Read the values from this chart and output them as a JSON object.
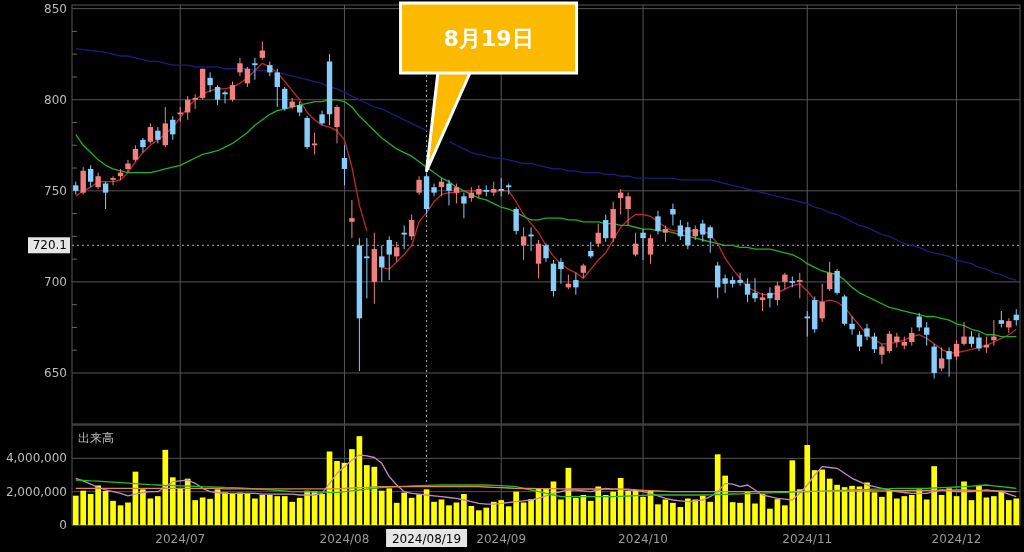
{
  "chart_data": [
    {
      "type": "candlestick",
      "categories": [
        null,
        null,
        null,
        null,
        null,
        null,
        null,
        null,
        null,
        null,
        null,
        null,
        null,
        null,
        "2024/07",
        null,
        null,
        null,
        null,
        null,
        null,
        null,
        null,
        null,
        null,
        null,
        null,
        null,
        null,
        null,
        null,
        null,
        null,
        null,
        null,
        null,
        "2024/08",
        null,
        null,
        null,
        null,
        null,
        null,
        null,
        null,
        null,
        null,
        "2024/08/19",
        null,
        null,
        null,
        null,
        null,
        null,
        null,
        null,
        null,
        "2024/09",
        null,
        null,
        null,
        null,
        null,
        null,
        null,
        null,
        null,
        null,
        null,
        null,
        null,
        null,
        null,
        null,
        null,
        null,
        "2024/10",
        null,
        null,
        null,
        null,
        null,
        null,
        null,
        null,
        null,
        null,
        null,
        null,
        null,
        null,
        null,
        null,
        null,
        null,
        null,
        null,
        null,
        "2024/11",
        null,
        null,
        null,
        null,
        null,
        null,
        null,
        null,
        null,
        null,
        null,
        null,
        null,
        null,
        null,
        null,
        null,
        null,
        null,
        "2024/12",
        null,
        null,
        null,
        null,
        null,
        null,
        null,
        null
      ],
      "ohlc": [
        [
          753,
          755,
          748,
          750
        ],
        [
          749,
          763,
          748,
          761
        ],
        [
          762,
          764,
          752,
          755
        ],
        [
          752,
          760,
          751,
          758
        ],
        [
          754,
          755,
          740,
          749
        ],
        [
          756,
          758,
          753,
          757
        ],
        [
          758,
          762,
          756,
          760
        ],
        [
          762,
          767,
          760,
          765
        ],
        [
          767,
          775,
          766,
          773
        ],
        [
          778,
          779,
          771,
          774
        ],
        [
          777,
          787,
          776,
          785
        ],
        [
          783,
          785,
          776,
          778
        ],
        [
          775,
          796,
          774,
          787
        ],
        [
          789,
          791,
          778,
          781
        ],
        [
          792,
          796,
          788,
          793
        ],
        [
          793,
          802,
          789,
          800
        ],
        [
          800,
          803,
          795,
          801
        ],
        [
          801,
          817,
          800,
          817
        ],
        [
          812,
          815,
          804,
          808
        ],
        [
          807,
          808,
          797,
          800
        ],
        [
          804,
          805,
          798,
          803
        ],
        [
          800,
          810,
          799,
          808
        ],
        [
          815,
          823,
          813,
          820
        ],
        [
          809,
          818,
          807,
          817
        ],
        [
          820,
          823,
          811,
          819
        ],
        [
          823,
          832,
          822,
          827
        ],
        [
          819,
          821,
          813,
          815
        ],
        [
          815,
          817,
          796,
          807
        ],
        [
          806,
          807,
          794,
          795
        ],
        [
          796,
          801,
          795,
          799
        ],
        [
          797,
          799,
          791,
          793
        ],
        [
          790,
          791,
          773,
          774
        ],
        [
          775,
          782,
          770,
          776
        ],
        [
          792,
          794,
          786,
          787
        ],
        [
          821,
          825,
          786,
          792
        ],
        [
          785,
          797,
          776,
          796
        ],
        [
          768,
          775,
          753,
          762
        ],
        [
          733,
          745,
          724,
          735
        ],
        [
          720,
          724,
          651,
          680
        ],
        [
          714,
          724,
          691,
          713
        ],
        [
          700,
          727,
          688,
          718
        ],
        [
          714,
          720,
          700,
          708
        ],
        [
          723,
          725,
          701,
          715
        ],
        [
          714,
          722,
          711,
          719
        ],
        [
          727,
          731,
          718,
          726
        ],
        [
          725,
          737,
          723,
          734
        ],
        [
          749,
          758,
          748,
          756
        ],
        [
          758,
          760,
          737,
          740
        ],
        [
          752,
          754,
          747,
          749
        ],
        [
          752,
          757,
          747,
          755
        ],
        [
          754,
          756,
          742,
          750
        ],
        [
          749,
          754,
          743,
          752
        ],
        [
          747,
          749,
          735,
          743
        ],
        [
          746,
          752,
          744,
          749
        ],
        [
          748,
          753,
          746,
          751
        ],
        [
          750.5,
          753,
          747,
          749.5
        ],
        [
          749,
          755,
          747,
          751
        ],
        [
          751,
          757,
          747,
          750
        ],
        [
          753,
          754,
          748,
          752
        ],
        [
          740,
          741,
          726,
          728
        ],
        [
          720,
          730,
          712,
          725
        ],
        [
          726,
          730,
          717,
          725
        ],
        [
          710,
          723,
          702,
          721
        ],
        [
          720,
          721,
          711,
          713
        ],
        [
          710,
          712,
          692,
          695
        ],
        [
          711,
          713,
          699,
          707
        ],
        [
          697,
          704,
          696,
          699
        ],
        [
          701,
          705,
          693,
          697
        ],
        [
          705,
          710,
          702,
          709
        ],
        [
          717,
          722,
          713,
          714
        ],
        [
          721,
          732,
          719,
          727
        ],
        [
          734,
          737,
          722,
          724
        ],
        [
          724,
          744,
          722,
          740
        ],
        [
          746,
          751,
          737,
          749
        ],
        [
          740,
          749,
          731,
          747
        ],
        [
          715,
          727,
          714,
          721
        ],
        [
          727,
          729,
          712,
          724
        ],
        [
          715,
          726,
          710,
          724
        ],
        [
          736,
          739,
          726,
          728
        ],
        [
          727,
          731,
          722,
          729
        ],
        [
          740,
          743,
          731,
          737
        ],
        [
          731,
          734,
          723,
          725
        ],
        [
          730,
          733,
          718,
          720
        ],
        [
          725,
          731,
          723,
          729
        ],
        [
          732,
          734,
          722,
          726
        ],
        [
          730,
          731,
          716,
          724
        ],
        [
          709,
          711,
          691,
          697
        ],
        [
          702,
          704,
          694,
          699
        ],
        [
          701,
          703,
          697,
          699
        ],
        [
          701,
          705,
          698,
          699.5
        ],
        [
          699,
          702,
          689,
          693
        ],
        [
          694,
          702,
          689,
          691
        ],
        [
          690,
          694,
          684,
          691.5
        ],
        [
          694,
          697,
          686,
          691
        ],
        [
          690,
          700,
          687,
          698
        ],
        [
          700,
          705,
          696,
          704
        ],
        [
          700.5,
          703,
          697,
          699.5
        ],
        [
          700,
          705,
          691,
          701
        ],
        [
          681,
          684,
          670,
          680
        ],
        [
          690,
          692,
          672,
          674
        ],
        [
          680,
          699,
          678,
          689
        ],
        [
          696,
          711,
          695,
          705
        ],
        [
          706,
          707,
          693,
          694
        ],
        [
          692,
          693,
          676,
          677
        ],
        [
          677,
          681,
          671,
          674
        ],
        [
          671,
          673,
          662,
          664.5
        ],
        [
          674.5,
          677,
          668,
          670
        ],
        [
          670,
          672,
          661,
          663
        ],
        [
          660,
          666,
          655,
          664.5
        ],
        [
          662,
          673,
          661,
          671.5
        ],
        [
          667,
          672,
          664,
          670
        ],
        [
          665,
          670,
          663,
          667
        ],
        [
          667,
          675,
          665,
          672
        ],
        [
          681,
          683,
          673,
          675
        ],
        [
          675,
          678,
          665,
          671
        ],
        [
          664.5,
          666,
          647,
          650
        ],
        [
          652.5,
          664,
          651,
          658
        ],
        [
          662,
          664,
          648,
          657.5
        ],
        [
          659,
          668,
          657,
          666
        ],
        [
          666,
          678,
          665,
          670
        ],
        [
          670,
          673,
          664,
          666
        ],
        [
          669.5,
          672,
          662,
          663.5
        ],
        [
          664,
          670,
          661,
          665.5
        ],
        [
          668,
          679,
          665,
          670
        ],
        [
          679,
          684,
          675,
          677
        ],
        [
          675,
          680,
          672,
          678.5
        ],
        [
          682,
          685,
          676,
          679
        ]
      ],
      "colors": [
        "#87cefa",
        "#f08080",
        "#87cefa",
        "#f08080",
        "#87cefa",
        "#f08080",
        "#f08080",
        "#f08080",
        "#f08080",
        "#87cefa",
        "#f08080",
        "#87cefa",
        "#f08080",
        "#87cefa",
        "#f08080",
        "#f08080",
        "#f08080",
        "#f08080",
        "#87cefa",
        "#87cefa",
        "#87cefa",
        "#f08080",
        "#f08080",
        "#f08080",
        "#87cefa",
        "#f08080",
        "#87cefa",
        "#87cefa",
        "#87cefa",
        "#f08080",
        "#87cefa",
        "#87cefa",
        "#f08080",
        "#87cefa",
        "#87cefa",
        "#f08080",
        "#87cefa",
        "#f08080",
        "#87cefa",
        "#87cefa",
        "#f08080",
        "#87cefa",
        "#87cefa",
        "#f08080",
        "#87cefa",
        "#f08080",
        "#f08080",
        "#87cefa",
        "#87cefa",
        "#f08080",
        "#87cefa",
        "#f08080",
        "#87cefa",
        "#f08080",
        "#f08080",
        "#87cefa",
        "#f08080",
        "#87cefa",
        "#87cefa",
        "#87cefa",
        "#f08080",
        "#87cefa",
        "#f08080",
        "#87cefa",
        "#87cefa",
        "#87cefa",
        "#f08080",
        "#87cefa",
        "#f08080",
        "#87cefa",
        "#f08080",
        "#87cefa",
        "#f08080",
        "#f08080",
        "#f08080",
        "#f08080",
        "#87cefa",
        "#f08080",
        "#87cefa",
        "#f08080",
        "#87cefa",
        "#87cefa",
        "#87cefa",
        "#f08080",
        "#87cefa",
        "#87cefa",
        "#87cefa",
        "#87cefa",
        "#87cefa",
        "#87cefa",
        "#87cefa",
        "#87cefa",
        "#f08080",
        "#87cefa",
        "#f08080",
        "#f08080",
        "#87cefa",
        "#f08080",
        "#87cefa",
        "#87cefa",
        "#f08080",
        "#f08080",
        "#87cefa",
        "#87cefa",
        "#87cefa",
        "#87cefa",
        "#87cefa",
        "#87cefa",
        "#f08080",
        "#f08080",
        "#f08080",
        "#f08080",
        "#f08080",
        "#87cefa",
        "#87cefa",
        "#87cefa",
        "#f08080",
        "#87cefa",
        "#f08080",
        "#f08080",
        "#87cefa",
        "#87cefa",
        "#f08080",
        "#f08080",
        "#87cefa",
        "#f08080",
        "#87cefa"
      ],
      "series": [
        {
          "type": "line",
          "color": "#c0282d",
          "values": [
            747,
            750,
            752,
            755,
            755,
            755,
            756,
            760,
            766,
            771,
            775,
            778,
            781,
            785,
            790,
            796,
            800,
            803,
            805,
            806,
            806,
            807,
            809,
            812,
            816,
            820,
            818,
            815,
            810,
            805,
            800,
            793,
            789,
            786,
            785,
            783,
            778,
            763,
            742,
            728,
            null,
            708,
            707,
            711,
            715,
            720,
            733,
            738,
            744,
            748,
            749,
            749,
            750,
            750,
            750,
            750,
            750,
            750,
            750,
            744,
            737,
            732,
            727,
            720,
            714,
            710,
            707,
            705,
            702,
            707,
            712,
            716,
            723,
            730,
            734,
            737,
            737,
            736,
            733,
            730,
            728,
            728,
            728,
            728,
            728,
            726,
            721,
            713,
            707,
            702,
            697,
            695,
            693,
            693,
            694,
            696,
            698,
            699,
            695,
            690,
            689,
            690,
            689,
            686,
            681,
            676,
            671,
            668,
            666,
            666,
            667,
            668,
            670,
            671,
            669,
            666,
            663,
            661,
            661,
            662,
            663,
            664,
            665,
            667,
            669,
            671,
            674
          ]
        },
        {
          "type": "line",
          "color": "#22b022",
          "values": [
            781,
            775,
            771,
            767,
            764,
            762,
            761,
            760,
            760,
            760,
            760,
            761,
            762,
            763,
            764,
            766,
            768,
            770,
            771,
            772,
            774,
            776,
            779,
            782,
            786,
            789,
            792,
            794,
            795,
            796,
            797,
            798,
            799,
            799,
            800,
            800,
            799,
            796,
            791,
            787,
            783,
            779,
            776,
            773,
            771,
            769,
            766,
            763,
            760,
            757,
            755,
            752,
            750,
            748,
            746,
            745,
            743,
            741,
            740,
            738,
            736,
            734,
            734,
            735,
            735,
            735,
            734,
            734,
            733,
            733,
            733,
            732,
            732,
            731,
            731,
            730,
            729,
            729,
            728,
            728,
            727,
            726,
            725,
            724,
            723,
            722,
            721,
            720,
            720,
            719,
            719,
            718,
            718,
            718,
            717,
            716,
            715,
            713,
            710,
            708,
            706,
            705,
            704,
            701,
            697,
            694,
            692,
            690,
            688,
            686,
            685,
            684,
            683,
            682,
            681,
            681,
            680,
            679,
            677,
            676,
            674,
            673,
            671,
            671,
            670,
            670,
            670
          ]
        },
        {
          "type": "line",
          "color": "#1c1c80",
          "values": [
            828,
            827.5,
            827,
            826.5,
            826,
            825,
            824,
            824,
            823,
            822,
            821,
            821,
            820,
            819,
            819,
            819,
            818,
            818,
            818,
            818,
            817,
            817,
            817,
            817,
            816,
            816,
            816,
            815,
            814,
            813,
            812,
            811,
            810,
            809,
            807,
            806,
            804,
            802,
            800,
            798,
            796,
            795,
            793,
            791,
            789,
            787,
            785,
            783,
            null,
            null,
            777,
            775,
            773,
            771,
            770,
            769,
            768,
            768,
            767,
            766,
            765,
            765,
            764,
            763,
            762,
            762,
            761,
            761,
            760,
            760,
            760,
            759,
            759,
            758,
            758,
            757,
            757,
            757,
            757,
            757,
            757,
            756,
            756,
            756,
            756,
            756,
            755,
            754,
            753,
            752,
            751,
            750,
            749,
            748,
            747,
            746,
            745,
            744,
            743,
            741,
            740,
            738,
            737,
            735,
            733,
            731,
            730,
            728,
            726,
            725,
            723,
            721,
            720,
            719,
            717,
            716,
            715,
            714,
            712,
            711,
            710,
            708,
            707,
            705,
            704,
            702,
            701
          ]
        }
      ],
      "ylim": [
        622,
        852
      ],
      "yticks": [
        650,
        {
          "value": 662.5,
          "label": null
        },
        {
          "value": 675,
          "label": null
        },
        {
          "value": 687.5,
          "label": null
        },
        700,
        {
          "value": 712.5,
          "label": null
        },
        {
          "value": 725,
          "label": null
        },
        {
          "value": 737.5,
          "label": null
        },
        750,
        {
          "value": 762.5,
          "label": null
        },
        {
          "value": 775,
          "label": null
        },
        {
          "value": 787.5,
          "label": null
        },
        800,
        {
          "value": 812.5,
          "label": null
        },
        {
          "value": 825,
          "label": null
        },
        {
          "value": 837.5,
          "label": null
        },
        850
      ],
      "grid": true,
      "tick_labels": "y",
      "ref_lines": [
        {
          "axis": "x",
          "value": "2024/08/19",
          "line_style": "dotted",
          "color": "#aaaaaa"
        },
        {
          "axis": "y",
          "value": 720.1,
          "label": "720.1",
          "line_style": "dotted",
          "color": "#aaaaaa"
        }
      ],
      "annotations": [
        {
          "text": "8月19日",
          "x": "2024/08/19",
          "y": 761
        }
      ]
    },
    {
      "type": "bar",
      "title": "出来高",
      "categories": [
        null,
        null,
        null,
        null,
        null,
        null,
        null,
        null,
        null,
        null,
        null,
        null,
        null,
        null,
        "2024/07",
        null,
        null,
        null,
        null,
        null,
        null,
        null,
        null,
        null,
        null,
        null,
        null,
        null,
        null,
        null,
        null,
        null,
        null,
        null,
        null,
        null,
        "2024/08",
        null,
        null,
        null,
        null,
        null,
        null,
        null,
        null,
        null,
        null,
        "2024/08/19",
        null,
        null,
        null,
        null,
        null,
        null,
        null,
        null,
        null,
        "2024/09",
        null,
        null,
        null,
        null,
        null,
        null,
        null,
        null,
        null,
        null,
        null,
        null,
        null,
        null,
        null,
        null,
        null,
        null,
        "2024/10",
        null,
        null,
        null,
        null,
        null,
        null,
        null,
        null,
        null,
        null,
        null,
        null,
        null,
        null,
        null,
        null,
        null,
        null,
        null,
        null,
        null,
        "2024/11",
        null,
        null,
        null,
        null,
        null,
        null,
        null,
        null,
        null,
        null,
        null,
        null,
        null,
        null,
        null,
        null,
        null,
        null,
        null,
        "2024/12",
        null,
        null,
        null,
        null,
        null,
        null,
        null,
        null
      ],
      "series": [
        {
          "type": "bar",
          "color": "#ffff00",
          "values": [
            1760000,
            2060000,
            1860000,
            2370000,
            2040000,
            1450000,
            1180000,
            1350000,
            3200000,
            2140000,
            1590000,
            1730000,
            4510000,
            2860000,
            2160000,
            2780000,
            1490000,
            1650000,
            1570000,
            2140000,
            1960000,
            1900000,
            1940000,
            1900000,
            1590000,
            1800000,
            1800000,
            1730000,
            1730000,
            1390000,
            1630000,
            2060000,
            2040000,
            1860000,
            4410000,
            3840000,
            3730000,
            4550000,
            5330000,
            3590000,
            3490000,
            2060000,
            2200000,
            1330000,
            1940000,
            1630000,
            1840000,
            2140000,
            1390000,
            1530000,
            1180000,
            1350000,
            1860000,
            1140000,
            880000,
            1040000,
            1390000,
            1490000,
            1120000,
            2000000,
            1350000,
            1550000,
            2160000,
            2160000,
            2610000,
            1530000,
            3430000,
            1630000,
            1800000,
            1450000,
            2310000,
            1800000,
            2000000,
            2820000,
            2040000,
            2100000,
            1690000,
            2100000,
            1240000,
            1530000,
            1330000,
            1080000,
            1590000,
            1530000,
            1760000,
            1390000,
            4240000,
            2960000,
            1370000,
            1330000,
            2040000,
            1290000,
            1860000,
            980000,
            1550000,
            1180000,
            3880000,
            2140000,
            4800000,
            3290000,
            3330000,
            2780000,
            2410000,
            2270000,
            2350000,
            2310000,
            2550000,
            1960000,
            1690000,
            2040000,
            1590000,
            1730000,
            1800000,
            2140000,
            1530000,
            3530000,
            1800000,
            2200000,
            1730000,
            2610000,
            1490000,
            2350000,
            1650000,
            1730000,
            2040000,
            1490000,
            1590000
          ]
        },
        {
          "type": "line",
          "color": "#c888c8",
          "values": [
            2800000,
            2650000,
            2450000,
            2250000,
            2100000,
            2000000,
            1900000,
            1750000,
            1850000,
            1950000,
            2000000,
            2000000,
            2300000,
            2600000,
            2650000,
            2700000,
            2500000,
            2200000,
            2000000,
            1950000,
            1900000,
            1900000,
            1900000,
            1900000,
            1900000,
            1850000,
            1850000,
            1850000,
            1850000,
            1850000,
            1800000,
            1800000,
            1800000,
            1900000,
            2500000,
            3100000,
            3500000,
            3900000,
            4200000,
            4150000,
            4050000,
            3700000,
            2900000,
            2400000,
            2000000,
            1900000,
            1850000,
            1800000,
            1750000,
            1700000,
            1650000,
            1600000,
            1500000,
            1400000,
            1300000,
            1250000,
            1250000,
            1300000,
            1350000,
            1400000,
            1450000,
            1500000,
            1600000,
            1750000,
            1900000,
            2000000,
            2100000,
            2100000,
            2050000,
            2000000,
            2100000,
            2200000,
            2150000,
            2150000,
            2100000,
            2100000,
            2000000,
            1900000,
            1750000,
            1600000,
            1500000,
            1450000,
            1400000,
            1450000,
            1500000,
            1700000,
            2000000,
            2500000,
            2450000,
            2300000,
            2400000,
            2100000,
            1800000,
            1700000,
            1600000,
            1550000,
            1500000,
            1900000,
            2400000,
            3000000,
            3500000,
            3450000,
            3400000,
            3100000,
            2800000,
            2600000,
            2400000,
            2300000,
            2200000,
            2100000,
            2000000,
            1950000,
            1900000,
            1900000,
            1900000,
            2000000,
            2100000,
            2050000,
            2000000,
            2000000,
            2000000,
            2050000,
            2100000,
            2050000,
            2000000,
            1850000,
            1700000
          ]
        },
        {
          "type": "line",
          "color": "#22c022",
          "values": [
            2700000,
            2680000,
            2650000,
            2630000,
            2600000,
            2570000,
            2540000,
            2510000,
            2480000,
            2450000,
            2420000,
            2400000,
            2380000,
            2370000,
            2350000,
            2340000,
            2320000,
            2300000,
            2290000,
            2270000,
            2250000,
            2240000,
            2220000,
            2200000,
            2170000,
            2140000,
            2110000,
            2080000,
            2050000,
            2000000,
            2000000,
            1990000,
            1980000,
            1970000,
            1960000,
            1950000,
            2000000,
            2050000,
            2100000,
            2150000,
            2200000,
            2250000,
            2280000,
            2300000,
            2320000,
            2340000,
            2360000,
            2380000,
            2390000,
            2400000,
            2400000,
            2400000,
            2400000,
            2400000,
            2400000,
            2400000,
            2380000,
            2360000,
            2330000,
            2300000,
            2200000,
            2100000,
            2000000,
            1900000,
            1800000,
            1700000,
            1700000,
            1700000,
            1700000,
            1700000,
            1700000,
            1700000,
            1700000,
            1720000,
            1740000,
            1760000,
            1780000,
            1800000,
            1800000,
            1800000,
            1800000,
            1800000,
            1800000,
            1800000,
            1800000,
            1810000,
            1830000,
            1840000,
            1860000,
            1870000,
            1890000,
            1900000,
            1910000,
            1930000,
            1940000,
            1960000,
            1970000,
            1990000,
            2000000,
            2020000,
            2030000,
            2050000,
            2070000,
            2080000,
            2100000,
            2120000,
            2130000,
            2150000,
            2170000,
            2180000,
            2200000,
            2200000,
            2200000,
            2200000,
            2200000,
            2220000,
            2240000,
            2260000,
            2280000,
            2300000,
            2330000,
            2370000,
            2400000,
            2350000,
            2300000,
            2250000,
            2200000
          ]
        },
        {
          "type": "line",
          "color": "#e08850",
          "values": [
            2200000,
            2200000,
            2200000,
            2200000,
            2200000,
            2200000,
            2200000,
            2200000,
            2200000,
            2200000,
            2200000,
            2200000,
            2200000,
            2200000,
            2200000,
            2200000,
            2200000,
            2200000,
            2200000,
            2200000,
            2170000,
            2170000,
            2170000,
            2170000,
            2170000,
            2170000,
            2170000,
            2170000,
            2170000,
            2170000,
            2170000,
            2170000,
            2170000,
            2170000,
            2170000,
            2170000,
            2200000,
            2220000,
            2240000,
            2260000,
            2280000,
            2300000,
            2300000,
            2300000,
            2300000,
            2300000,
            2300000,
            2300000,
            2300000,
            2300000,
            2300000,
            2300000,
            2300000,
            2300000,
            2300000,
            2280000,
            2260000,
            2240000,
            2220000,
            2200000,
            2190000,
            2190000,
            2180000,
            2180000,
            2180000,
            2170000,
            2170000,
            2170000,
            2160000,
            2160000,
            2160000,
            2150000,
            2150000,
            2150000,
            2150000,
            2100000,
            2080000,
            2060000,
            2040000,
            2020000,
            2000000,
            2000000,
            2000000,
            2000000,
            2000000,
            2000000,
            2000000,
            2000000,
            2000000,
            2000000,
            2000000,
            2000000,
            2000000,
            2000000,
            2000000,
            2000000,
            2000000,
            2010000,
            2010000,
            2020000,
            2020000,
            2030000,
            2030000,
            2030000,
            2040000,
            2040000,
            2040000,
            2050000,
            2050000,
            2050000,
            2060000,
            2060000,
            2070000,
            2070000,
            2080000,
            2080000,
            2090000,
            2090000,
            2100000,
            2100000,
            2080000,
            2070000,
            2060000,
            2050000,
            2040000,
            2020000,
            2000000
          ]
        }
      ],
      "ylim": [
        0,
        6000000
      ],
      "yticks": [
        0,
        {
          "value": 2000000,
          "label": "2,000,000"
        },
        {
          "value": 4000000,
          "label": "4,000,000"
        }
      ],
      "grid": true,
      "ref_lines": [
        {
          "axis": "x",
          "value": "2024/08/19",
          "line_style": "dotted",
          "color": "#aaaaaa"
        }
      ]
    }
  ]
}
